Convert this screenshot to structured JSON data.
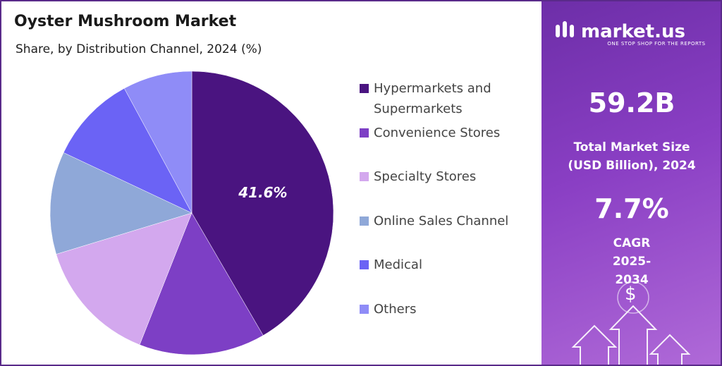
{
  "chart_data": {
    "type": "pie",
    "title": "Oyster Mushroom Market",
    "subtitle": "Share, by Distribution Channel, 2024 (%)",
    "categories": [
      "Hypermarkets and Supermarkets",
      "Convenience Stores",
      "Specialty Stores",
      "Online Sales Channel",
      "Medical",
      "Others"
    ],
    "values": [
      41.6,
      14.4,
      14.3,
      11.7,
      10.1,
      7.9
    ],
    "value_labels": [
      "41.6%",
      null,
      null,
      null,
      null,
      null
    ],
    "colors": [
      "#4a1480",
      "#7d3fc5",
      "#d3a8ee",
      "#8fa8d8",
      "#6b63f5",
      "#8f8cf7"
    ]
  },
  "brand": {
    "name": "market.us",
    "tagline": "ONE STOP SHOP FOR THE REPORTS"
  },
  "stats": [
    {
      "value": "59.2B",
      "label": "Total Market Size (USD Billion), 2024"
    },
    {
      "value": "7.7%",
      "label": "CAGR 2025-2034"
    }
  ],
  "icon_text": "$"
}
